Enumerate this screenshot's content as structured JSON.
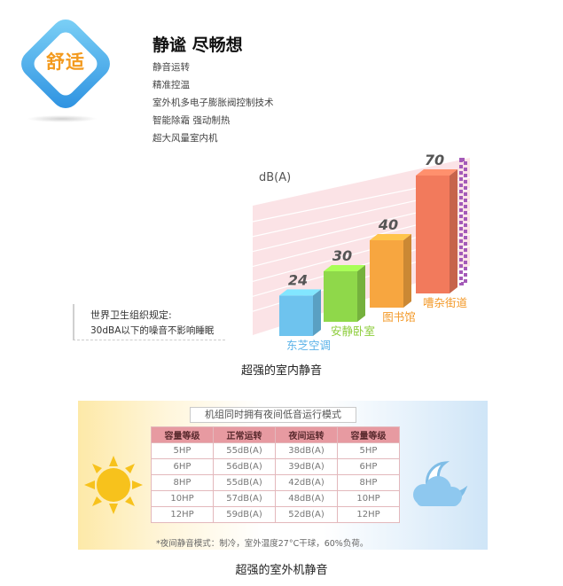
{
  "badge": {
    "label": "舒适"
  },
  "header": {
    "title": "静谧 尽畅想",
    "features": [
      "静音运转",
      "精准控温",
      "室外机多电子膨胀阀控制技术",
      "智能除霜 强动制热",
      "超大风量室内机"
    ]
  },
  "chart_data": {
    "type": "bar",
    "ylabel": "dB(A)",
    "categories": [
      "东芝空调",
      "安静卧室",
      "图书馆",
      "嘈杂街道"
    ],
    "values": [
      24,
      30,
      40,
      70
    ],
    "value_labels": [
      "24",
      "30",
      "40",
      "70"
    ],
    "colors": [
      "#6ec3ee",
      "#8fd84a",
      "#f7a640",
      "#f27a5c"
    ],
    "label_colors": [
      "#5ab2e8",
      "#8ccc3a",
      "#f39a2a",
      "#f39a2a"
    ],
    "annotation": "世界卫生组织规定:",
    "annotation_detail": "30dBA以下的噪音不影响睡眠",
    "caption": "超强的室内静音"
  },
  "table": {
    "title": "机组同时拥有夜间低音运行模式",
    "headers": [
      "容量等级",
      "正常运转",
      "夜间运转",
      "容量等级"
    ],
    "rows": [
      [
        "5HP",
        "55dB(A)",
        "38dB(A)",
        "5HP"
      ],
      [
        "6HP",
        "56dB(A)",
        "39dB(A)",
        "6HP"
      ],
      [
        "8HP",
        "55dB(A)",
        "42dB(A)",
        "8HP"
      ],
      [
        "10HP",
        "57dB(A)",
        "48dB(A)",
        "10HP"
      ],
      [
        "12HP",
        "59dB(A)",
        "52dB(A)",
        "12HP"
      ]
    ],
    "note": "*夜间静音模式：制冷，室外温度27°C干球，60%负荷。",
    "caption": "超强的室外机静音"
  },
  "icons": {
    "sun": "sun-icon",
    "moon_cloud": "moon-cloud-icon"
  }
}
